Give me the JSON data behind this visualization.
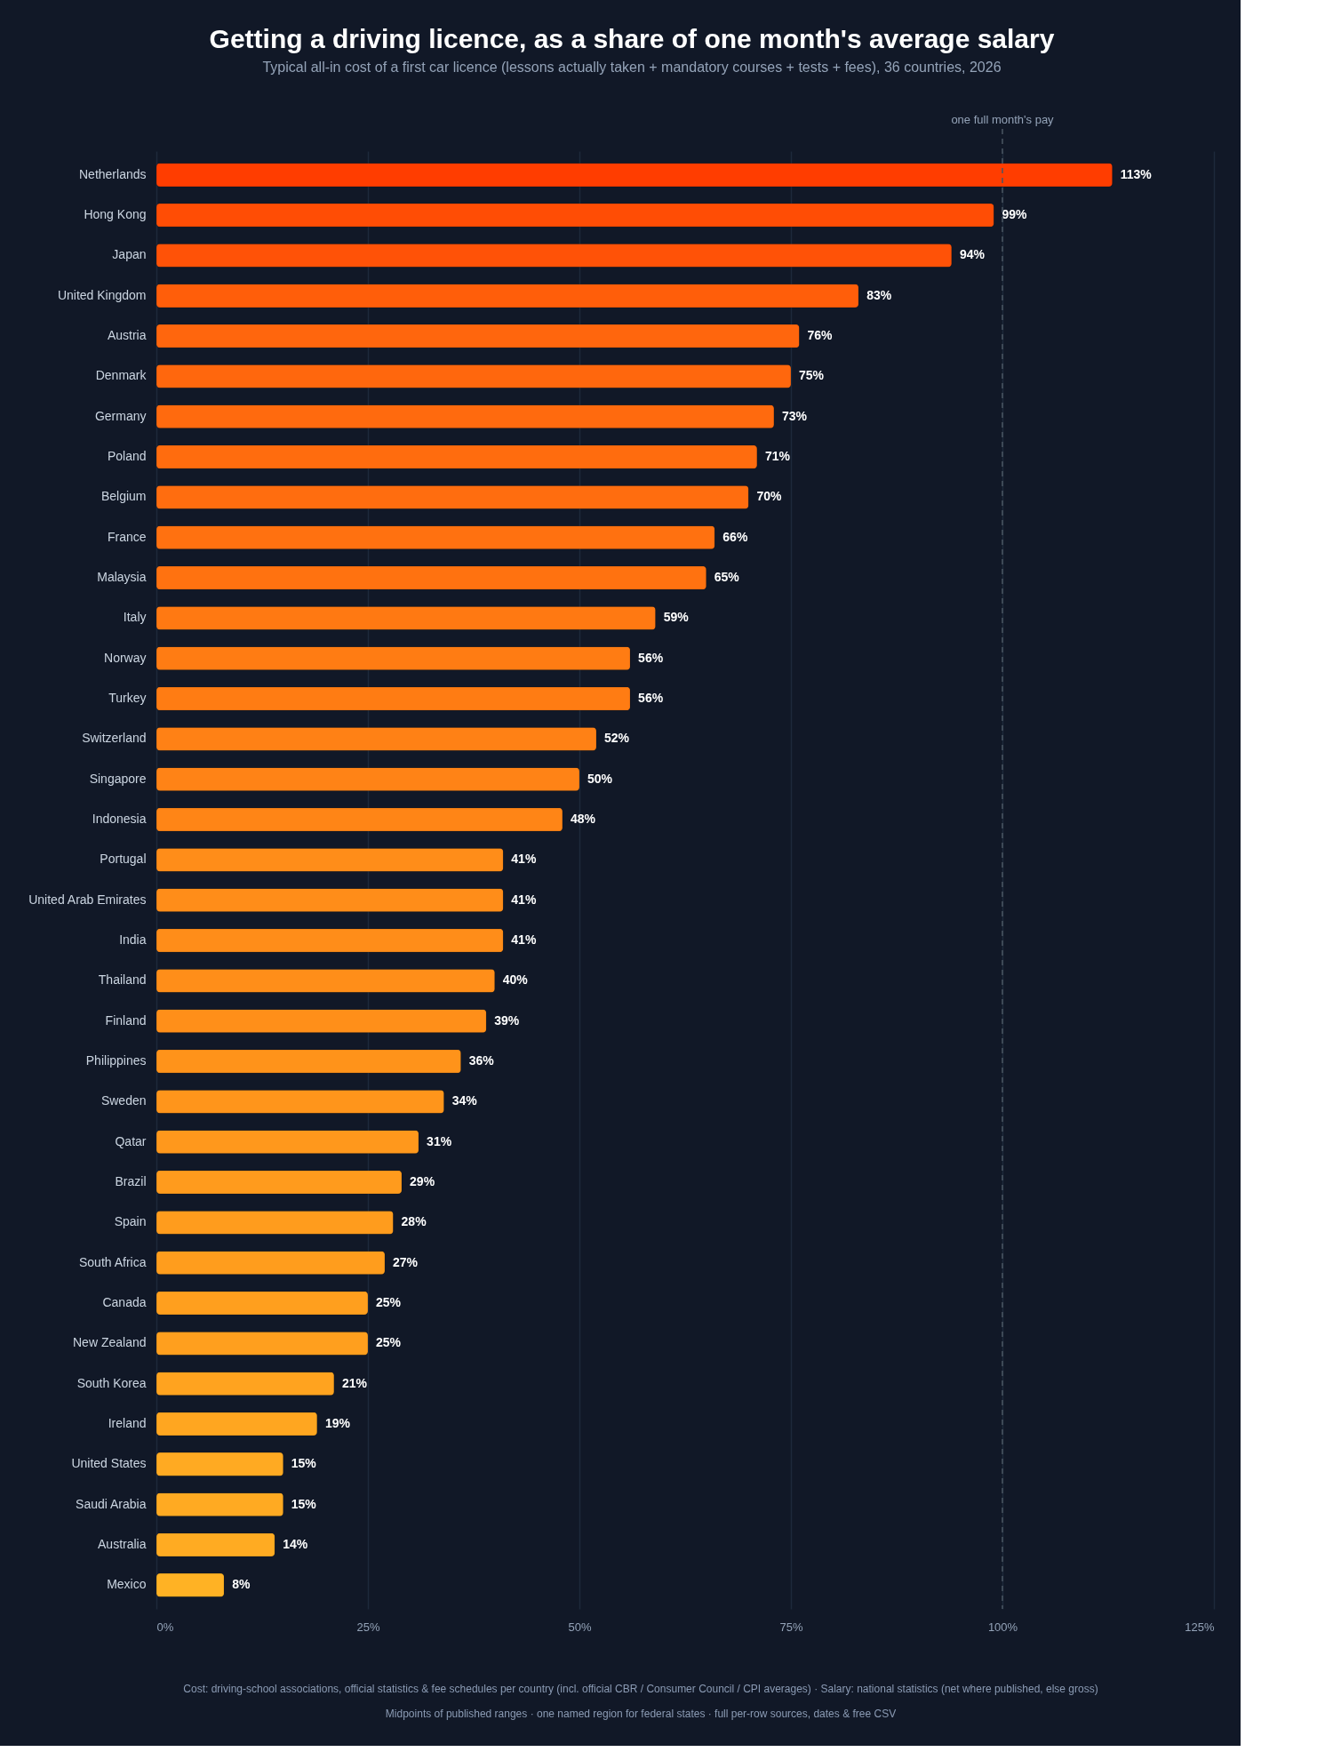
{
  "chart_data": {
    "type": "bar",
    "orientation": "horizontal",
    "title": "Getting a driving licence, as a share of one month's average salary",
    "subtitle": "Typical all-in cost of a first car licence (lessons actually taken + mandatory courses + tests + fees), 36 countries, 2026",
    "categories": [
      "Netherlands",
      "Hong Kong",
      "Japan",
      "United Kingdom",
      "Austria",
      "Denmark",
      "Germany",
      "Poland",
      "Belgium",
      "France",
      "Malaysia",
      "Italy",
      "Norway",
      "Turkey",
      "Switzerland",
      "Singapore",
      "Indonesia",
      "Portugal",
      "United Arab Emirates",
      "India",
      "Thailand",
      "Finland",
      "Philippines",
      "Sweden",
      "Qatar",
      "Brazil",
      "Spain",
      "South Africa",
      "Canada",
      "New Zealand",
      "South Korea",
      "Ireland",
      "United States",
      "Saudi Arabia",
      "Australia",
      "Mexico"
    ],
    "values": [
      113,
      99,
      94,
      83,
      76,
      75,
      73,
      71,
      70,
      66,
      65,
      59,
      56,
      56,
      52,
      50,
      48,
      41,
      41,
      41,
      40,
      39,
      36,
      34,
      31,
      29,
      28,
      27,
      25,
      25,
      21,
      19,
      15,
      15,
      14,
      8
    ],
    "value_labels": [
      "113%",
      "99%",
      "94%",
      "83%",
      "76%",
      "75%",
      "73%",
      "71%",
      "70%",
      "66%",
      "65%",
      "59%",
      "56%",
      "56%",
      "52%",
      "50%",
      "48%",
      "41%",
      "41%",
      "41%",
      "40%",
      "39%",
      "36%",
      "34%",
      "31%",
      "29%",
      "28%",
      "27%",
      "25%",
      "25%",
      "21%",
      "19%",
      "15%",
      "15%",
      "14%",
      "8%"
    ],
    "colors": [
      "#ff3d00",
      "#ff4d05",
      "#ff5207",
      "#ff5e0a",
      "#ff660d",
      "#ff670d",
      "#ff6a0e",
      "#ff6c0e",
      "#ff6d0f",
      "#ff7110",
      "#ff7210",
      "#ff7912",
      "#ff7c13",
      "#ff7c13",
      "#ff8115",
      "#ff8316",
      "#ff8516",
      "#ff8d19",
      "#ff8d19",
      "#ff8d19",
      "#ff8e19",
      "#ff8f19",
      "#ff931a",
      "#ff951b",
      "#ff981c",
      "#ff9b1d",
      "#ff9c1d",
      "#ff9d1d",
      "#ff9f1e",
      "#ff9f1e",
      "#ffa31f",
      "#ffa620",
      "#ffaa22",
      "#ffaa22",
      "#ffab22",
      "#ffb224"
    ],
    "xlim": [
      0,
      125
    ],
    "xticks": [
      {
        "value": 0,
        "label": "0%"
      },
      {
        "value": 25,
        "label": "25%"
      },
      {
        "value": 50,
        "label": "50%"
      },
      {
        "value": 75,
        "label": "75%"
      },
      {
        "value": 100,
        "label": "100%"
      },
      {
        "value": 125,
        "label": "125%"
      }
    ],
    "grid": "x",
    "ref_lines": [
      {
        "axis": "x",
        "value": 100,
        "label": "one full month's pay",
        "line_style": "dashed",
        "color": "#4b5563"
      }
    ],
    "annotations": [
      "Cost: driving-school associations, official statistics & fee schedules per country (incl. official CBR / Consumer Council / CPI averages) · Salary: national statistics (net where published, else gross)",
      "Midpoints of published ranges · one named region for federal states · full per-row sources, dates & free CSV"
    ]
  }
}
